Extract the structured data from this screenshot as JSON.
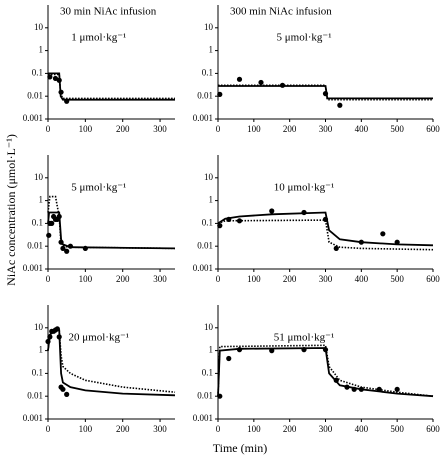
{
  "figure": {
    "xlabel": "Time (min)",
    "ylabel": "NiAc concentration (μmol·L⁻¹)"
  },
  "chart_data": [
    {
      "type": "line",
      "title": "30 min NiAc infusion",
      "subtitle": "1 μmol·kg⁻¹",
      "xlim": [
        0,
        340
      ],
      "xticks": [
        0,
        100,
        200,
        300
      ],
      "ylim": [
        0.001,
        100
      ],
      "yticks": [
        0.001,
        0.01,
        0.1,
        1,
        10
      ],
      "log_y": true,
      "color": "#000000",
      "series": [
        {
          "style": "points",
          "x": [
            5,
            20,
            30,
            35,
            50
          ],
          "values": [
            0.07,
            0.06,
            0.05,
            0.015,
            0.006
          ]
        },
        {
          "style": "solid",
          "x": [
            0,
            30,
            34,
            40,
            340
          ],
          "values": [
            0.1,
            0.1,
            0.01,
            0.007,
            0.007
          ]
        },
        {
          "style": "dotted",
          "x": [
            0,
            30,
            34,
            40,
            340
          ],
          "values": [
            0.09,
            0.09,
            0.012,
            0.008,
            0.008
          ]
        }
      ]
    },
    {
      "type": "line",
      "title": "300 min NiAc infusion",
      "subtitle": "5 μmol·kg⁻¹",
      "xlim": [
        0,
        600
      ],
      "xticks": [
        0,
        100,
        200,
        300,
        400,
        500,
        600
      ],
      "ylim": [
        0.001,
        100
      ],
      "yticks": [
        0.001,
        0.01,
        0.1,
        1,
        10
      ],
      "log_y": true,
      "color": "#000000",
      "series": [
        {
          "style": "points",
          "x": [
            5,
            60,
            120,
            180,
            300,
            340
          ],
          "values": [
            0.012,
            0.055,
            0.04,
            0.03,
            0.013,
            0.004
          ]
        },
        {
          "style": "solid",
          "x": [
            0,
            300,
            305,
            600
          ],
          "values": [
            0.028,
            0.028,
            0.008,
            0.008
          ]
        },
        {
          "style": "dotted",
          "x": [
            0,
            300,
            305,
            600
          ],
          "values": [
            0.03,
            0.03,
            0.007,
            0.007
          ]
        }
      ]
    },
    {
      "type": "line",
      "subtitle": "5 μmol·kg⁻¹",
      "xlim": [
        0,
        340
      ],
      "xticks": [
        0,
        100,
        200,
        300
      ],
      "ylim": [
        0.001,
        100
      ],
      "yticks": [
        0.001,
        0.01,
        0.1,
        1,
        10
      ],
      "log_y": true,
      "color": "#000000",
      "series": [
        {
          "style": "points",
          "x": [
            2,
            5,
            10,
            15,
            20,
            25,
            30,
            35,
            40,
            50,
            60,
            100
          ],
          "values": [
            0.03,
            0.1,
            0.1,
            0.2,
            0.15,
            0.15,
            0.2,
            0.015,
            0.008,
            0.006,
            0.01,
            0.008
          ]
        },
        {
          "style": "solid",
          "x": [
            0,
            3,
            30,
            35,
            40,
            60,
            340
          ],
          "values": [
            0.1,
            0.3,
            0.3,
            0.02,
            0.012,
            0.009,
            0.008
          ]
        },
        {
          "style": "dotted",
          "x": [
            0,
            5,
            20,
            30,
            34,
            40,
            60,
            340
          ],
          "values": [
            0.3,
            1.5,
            1.5,
            0.2,
            0.02,
            0.01,
            0.009,
            0.008
          ]
        }
      ]
    },
    {
      "type": "line",
      "subtitle": "10 μmol·kg⁻¹",
      "xlim": [
        0,
        600
      ],
      "xticks": [
        0,
        100,
        200,
        300,
        400,
        500,
        600
      ],
      "ylim": [
        0.001,
        100
      ],
      "yticks": [
        0.001,
        0.01,
        0.1,
        1,
        10
      ],
      "log_y": true,
      "color": "#000000",
      "series": [
        {
          "style": "points",
          "x": [
            5,
            30,
            60,
            150,
            240,
            300,
            330,
            400,
            460,
            500
          ],
          "values": [
            0.08,
            0.15,
            0.13,
            0.35,
            0.3,
            0.15,
            0.008,
            0.015,
            0.035,
            0.015
          ]
        },
        {
          "style": "solid",
          "x": [
            0,
            20,
            60,
            150,
            300,
            310,
            340,
            400,
            500,
            600
          ],
          "values": [
            0.1,
            0.16,
            0.2,
            0.25,
            0.3,
            0.05,
            0.02,
            0.015,
            0.012,
            0.011
          ]
        },
        {
          "style": "dotted",
          "x": [
            0,
            20,
            300,
            310,
            340,
            400,
            600
          ],
          "values": [
            0.1,
            0.13,
            0.14,
            0.015,
            0.009,
            0.008,
            0.007
          ]
        }
      ]
    },
    {
      "type": "line",
      "subtitle": "20 μmol·kg⁻¹",
      "xlim": [
        0,
        340
      ],
      "xticks": [
        0,
        100,
        200,
        300
      ],
      "ylim": [
        0.001,
        100
      ],
      "yticks": [
        0.001,
        0.01,
        0.1,
        1,
        10
      ],
      "log_y": true,
      "color": "#000000",
      "series": [
        {
          "style": "points",
          "x": [
            0,
            5,
            10,
            15,
            20,
            25,
            30,
            35,
            40,
            50
          ],
          "values": [
            2.5,
            4,
            7,
            7,
            8,
            9,
            4,
            0.025,
            0.02,
            0.012
          ]
        },
        {
          "style": "solid",
          "x": [
            0,
            5,
            25,
            30,
            35,
            40,
            60,
            100,
            200,
            340
          ],
          "values": [
            1,
            5,
            9,
            8,
            0.1,
            0.04,
            0.025,
            0.018,
            0.013,
            0.011
          ]
        },
        {
          "style": "dotted",
          "x": [
            0,
            5,
            25,
            30,
            35,
            40,
            60,
            100,
            200,
            340
          ],
          "values": [
            1,
            6,
            10,
            8,
            0.6,
            0.2,
            0.1,
            0.05,
            0.025,
            0.015
          ]
        }
      ]
    },
    {
      "type": "line",
      "subtitle": "51 μmol·kg⁻¹",
      "xlim": [
        0,
        600
      ],
      "xticks": [
        0,
        100,
        200,
        300,
        400,
        500,
        600
      ],
      "ylim": [
        0.001,
        100
      ],
      "yticks": [
        0.001,
        0.01,
        0.1,
        1,
        10
      ],
      "log_y": true,
      "color": "#000000",
      "series": [
        {
          "style": "points",
          "x": [
            5,
            30,
            60,
            150,
            240,
            300,
            330,
            360,
            380,
            400,
            450,
            500
          ],
          "values": [
            0.01,
            0.45,
            1.1,
            1,
            1.1,
            1.1,
            0.05,
            0.025,
            0.02,
            0.02,
            0.02,
            0.02
          ]
        },
        {
          "style": "solid",
          "x": [
            0,
            5,
            60,
            300,
            310,
            340,
            400,
            500,
            600
          ],
          "values": [
            0.01,
            1,
            1.2,
            1.3,
            0.1,
            0.03,
            0.02,
            0.013,
            0.01
          ]
        },
        {
          "style": "dotted",
          "x": [
            0,
            5,
            300,
            310,
            340,
            400,
            500,
            600
          ],
          "values": [
            0.01,
            1.5,
            1.7,
            0.2,
            0.05,
            0.025,
            0.015,
            0.01
          ]
        }
      ]
    }
  ]
}
